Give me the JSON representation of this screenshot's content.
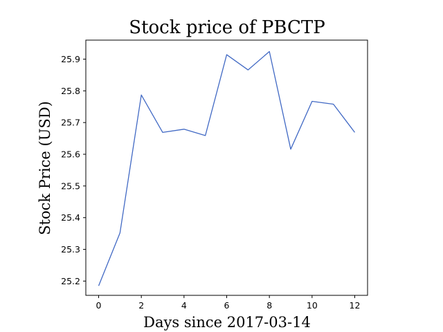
{
  "chart_data": {
    "type": "line",
    "title": "Stock price of PBCTP",
    "xlabel": "Days since 2017-03-14",
    "ylabel": "Stock Price (USD)",
    "xlim": [
      -0.6,
      12.6
    ],
    "ylim": [
      25.155,
      25.96
    ],
    "x_ticks": [
      0,
      2,
      4,
      6,
      8,
      10,
      12
    ],
    "x_tick_labels": [
      "0",
      "2",
      "4",
      "6",
      "8",
      "10",
      "12"
    ],
    "y_ticks": [
      25.2,
      25.3,
      25.4,
      25.5,
      25.6,
      25.7,
      25.8,
      25.9
    ],
    "y_tick_labels": [
      "25.2",
      "25.3",
      "25.4",
      "25.5",
      "25.6",
      "25.7",
      "25.8",
      "25.9"
    ],
    "grid": false,
    "color": "#4169c4",
    "series": [
      {
        "x": [
          0,
          1,
          2,
          3,
          4,
          5,
          6,
          7,
          8,
          9,
          10,
          11,
          12
        ],
        "values": [
          25.185,
          25.352,
          25.787,
          25.669,
          25.679,
          25.659,
          25.914,
          25.866,
          25.924,
          25.616,
          25.767,
          25.758,
          25.669
        ]
      }
    ]
  }
}
